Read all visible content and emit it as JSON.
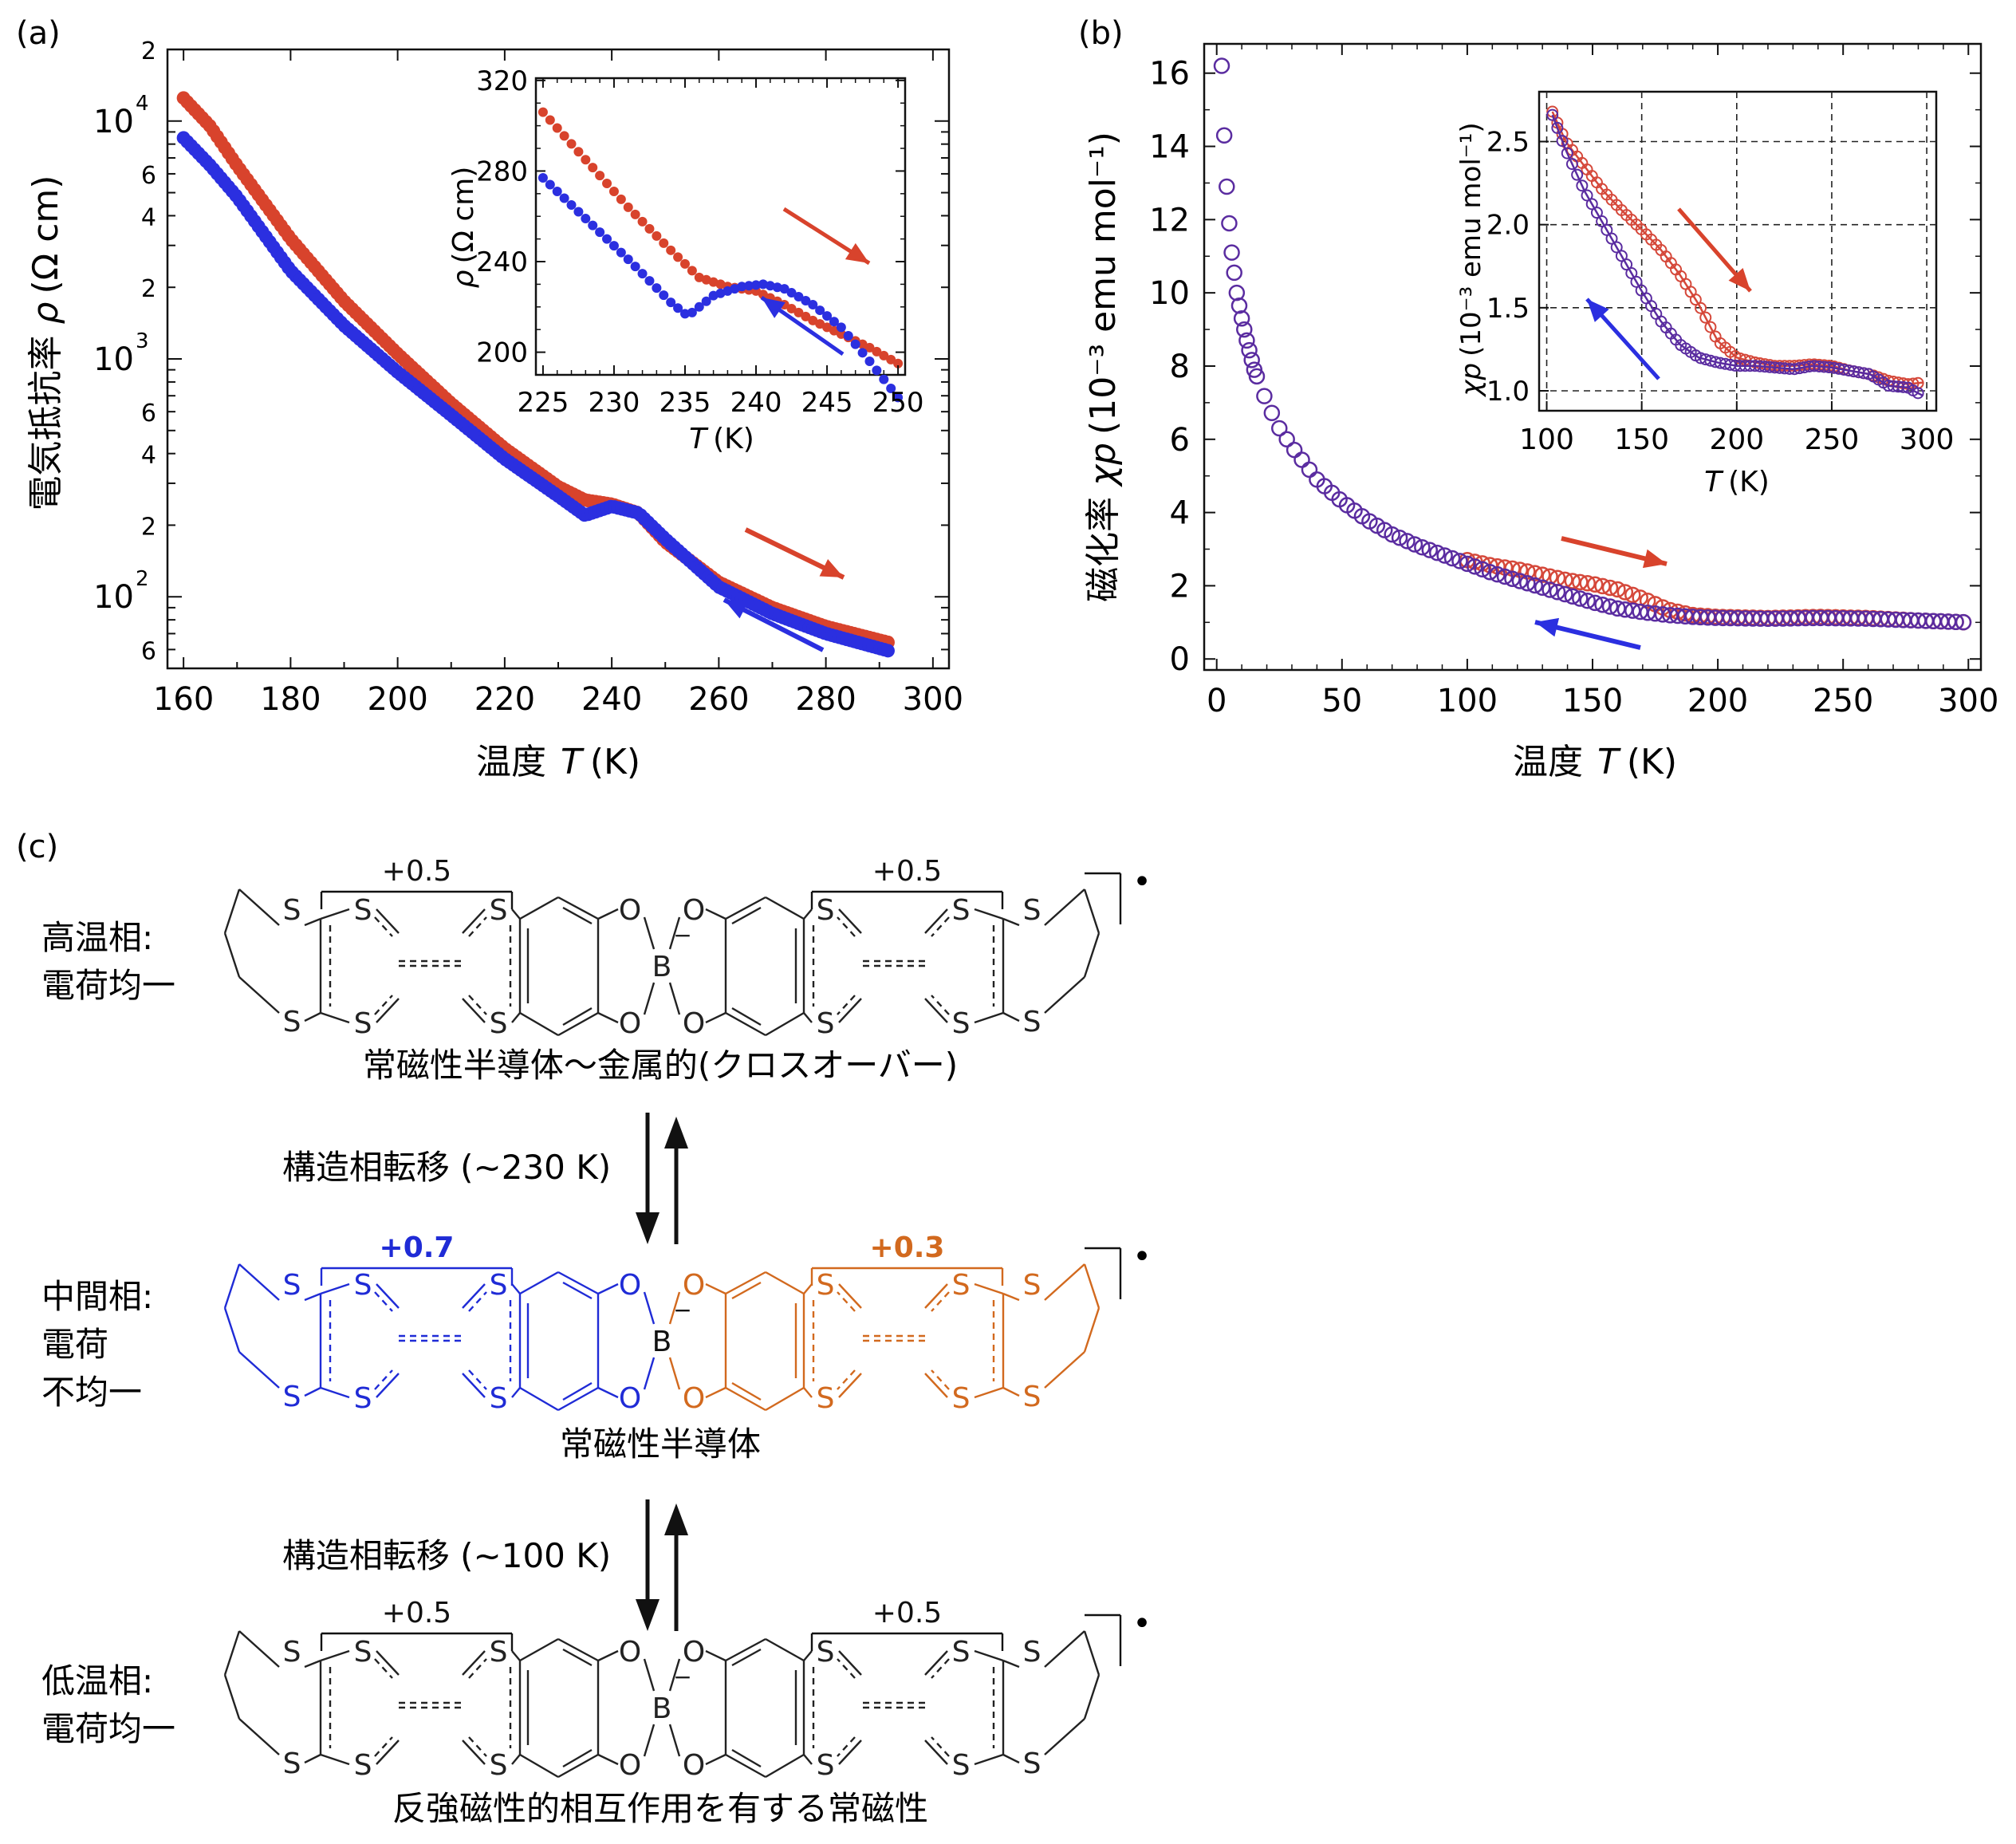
{
  "panels": {
    "a": "(a)",
    "b": "(b)",
    "c": "(c)"
  },
  "colors": {
    "red": "#d8432c",
    "blue": "#2b2fe0",
    "purple": "#5a2ca0",
    "red_open": "#d5483a",
    "orange": "#d2691e",
    "mol_blue": "#1f2bd6",
    "black": "#111111"
  },
  "chart_data": [
    {
      "id": "a-main",
      "type": "scatter",
      "xlabel_prefix": "温度",
      "xlabel_var": "T",
      "xlabel_unit": "(K)",
      "ylabel_prefix": "電気抵抗率",
      "ylabel_var": "ρ",
      "ylabel_unit": "(Ω cm)",
      "xlim": [
        157,
        303
      ],
      "ylim": [
        50,
        20000
      ],
      "yscale": "log",
      "xticks": [
        160,
        180,
        200,
        220,
        240,
        260,
        280,
        300
      ],
      "ytick_labels": [
        {
          "v": 20000,
          "t": "2"
        },
        {
          "v": 6000,
          "t": "6"
        },
        {
          "v": 4000,
          "t": "4"
        },
        {
          "v": 2000,
          "t": "2"
        },
        {
          "v": 600,
          "t": "6"
        },
        {
          "v": 400,
          "t": "4"
        },
        {
          "v": 200,
          "t": "2"
        },
        {
          "v": 60,
          "t": "6"
        }
      ],
      "ytick_decades": [
        {
          "v": 10000,
          "base": "10",
          "exp": "4"
        },
        {
          "v": 1000,
          "base": "10",
          "exp": "3"
        },
        {
          "v": 100,
          "base": "10",
          "exp": "2"
        }
      ],
      "series": [
        {
          "direction": "heating",
          "color": "red",
          "x": [
            160,
            165,
            170,
            180,
            190,
            200,
            210,
            220,
            230,
            235,
            240,
            245,
            250,
            260,
            270,
            280,
            292
          ],
          "y": [
            12500,
            9500,
            6500,
            3200,
            1750,
            1050,
            650,
            420,
            290,
            255,
            245,
            225,
            170,
            115,
            90,
            75,
            64
          ]
        },
        {
          "direction": "cooling",
          "color": "blue",
          "x": [
            160,
            165,
            170,
            180,
            190,
            200,
            210,
            220,
            230,
            235,
            240,
            245,
            250,
            260,
            270,
            280,
            292
          ],
          "y": [
            8500,
            6500,
            4800,
            2350,
            1380,
            880,
            580,
            380,
            265,
            220,
            240,
            225,
            175,
            110,
            85,
            70,
            59
          ]
        }
      ]
    },
    {
      "id": "a-inset",
      "type": "scatter",
      "xlabel_var": "T",
      "xlabel_unit": "(K)",
      "ylabel_var": "ρ",
      "ylabel_unit": "(Ω cm)",
      "xlim": [
        224.5,
        250.5
      ],
      "ylim": [
        190,
        321
      ],
      "xticks": [
        225,
        230,
        235,
        240,
        245,
        250
      ],
      "yticks": [
        200,
        240,
        280,
        320
      ],
      "series": [
        {
          "direction": "heating",
          "color": "red",
          "x": [
            225,
            228,
            231,
            234,
            236,
            238,
            240,
            242,
            244,
            246,
            248,
            250
          ],
          "y": [
            306,
            285,
            264,
            245,
            233,
            229,
            227,
            221,
            214,
            208,
            202,
            195
          ]
        },
        {
          "direction": "cooling",
          "color": "blue",
          "x": [
            225,
            228,
            231,
            234,
            235.2,
            237,
            239,
            240.5,
            242,
            244,
            246,
            248,
            250
          ],
          "y": [
            277,
            259,
            241,
            222,
            216,
            225,
            229,
            230,
            228,
            221,
            211,
            196,
            180
          ]
        }
      ]
    },
    {
      "id": "b-main",
      "type": "scatter",
      "xlabel_prefix": "温度",
      "xlabel_var": "T",
      "xlabel_unit": "(K)",
      "ylabel_prefix": "磁化率",
      "ylabel_var": "χp",
      "ylabel_unit": "(10⁻³ emu mol⁻¹)",
      "xlim": [
        -5,
        305
      ],
      "ylim": [
        -0.3,
        16.8
      ],
      "xticks": [
        0,
        50,
        100,
        150,
        200,
        250,
        300
      ],
      "yticks": [
        0,
        2,
        4,
        6,
        8,
        10,
        12,
        14,
        16
      ],
      "series": [
        {
          "direction": "heating",
          "color": "red_open",
          "x": [
            100,
            110,
            120,
            130,
            140,
            150,
            160,
            170,
            180,
            190,
            200,
            220,
            240,
            260,
            280,
            300
          ],
          "y": [
            2.7,
            2.55,
            2.45,
            2.3,
            2.15,
            2.05,
            1.9,
            1.65,
            1.35,
            1.2,
            1.15,
            1.12,
            1.15,
            1.12,
            1.05,
            1.0
          ]
        },
        {
          "direction": "cooling",
          "color": "purple",
          "x": [
            2,
            3,
            4,
            5,
            6,
            8,
            10,
            12,
            15,
            20,
            25,
            30,
            40,
            50,
            60,
            70,
            80,
            90,
            100,
            110,
            120,
            130,
            140,
            150,
            160,
            170,
            180,
            190,
            200,
            220,
            240,
            260,
            280,
            300
          ],
          "y": [
            16.2,
            14.3,
            12.9,
            11.9,
            11.1,
            10.0,
            9.3,
            8.7,
            7.9,
            7.0,
            6.3,
            5.8,
            4.9,
            4.3,
            3.8,
            3.4,
            3.1,
            2.85,
            2.6,
            2.35,
            2.15,
            1.95,
            1.75,
            1.55,
            1.38,
            1.28,
            1.2,
            1.15,
            1.12,
            1.1,
            1.12,
            1.1,
            1.05,
            1.0
          ]
        }
      ]
    },
    {
      "id": "b-inset",
      "type": "scatter",
      "xlabel_var": "T",
      "xlabel_unit": "(K)",
      "ylabel_var": "χp",
      "ylabel_unit": "(10⁻³ emu mol⁻¹)",
      "xlim": [
        96,
        305
      ],
      "ylim": [
        0.88,
        2.8
      ],
      "xticks": [
        100,
        150,
        200,
        250,
        300
      ],
      "yticks": [
        1.0,
        1.5,
        2.0,
        2.5
      ],
      "ytick_labels": [
        "1.0",
        "1.5",
        "2.0",
        "2.5"
      ],
      "grid": "dashed",
      "series": [
        {
          "direction": "heating",
          "color": "red_open",
          "x": [
            103,
            110,
            120,
            130,
            140,
            150,
            160,
            170,
            180,
            190,
            200,
            210,
            220,
            230,
            240,
            250,
            260,
            270,
            280,
            290,
            298
          ],
          "y": [
            2.68,
            2.5,
            2.35,
            2.2,
            2.08,
            1.97,
            1.85,
            1.7,
            1.52,
            1.3,
            1.2,
            1.17,
            1.15,
            1.15,
            1.16,
            1.15,
            1.12,
            1.1,
            1.06,
            1.04,
            1.05
          ]
        },
        {
          "direction": "cooling",
          "color": "purple",
          "x": [
            103,
            110,
            120,
            130,
            140,
            150,
            160,
            170,
            180,
            190,
            200,
            210,
            220,
            230,
            240,
            250,
            260,
            270,
            280,
            290,
            298
          ],
          "y": [
            2.66,
            2.45,
            2.2,
            2.0,
            1.8,
            1.6,
            1.42,
            1.28,
            1.2,
            1.17,
            1.15,
            1.15,
            1.14,
            1.13,
            1.15,
            1.14,
            1.12,
            1.1,
            1.03,
            1.02,
            0.97
          ]
        }
      ]
    }
  ],
  "scheme": {
    "phases": [
      {
        "label_lines": [
          "高温相:",
          "電荷均一"
        ],
        "charges": [
          "+0.5",
          "+0.5"
        ],
        "caption": "常磁性半導体〜金属的(クロスオーバー)",
        "radical": "•"
      },
      {
        "label_lines": [
          "中間相:",
          "電荷",
          "不均一"
        ],
        "charges": [
          "+0.7",
          "+0.3"
        ],
        "caption": "常磁性半導体",
        "radical": "•"
      },
      {
        "label_lines": [
          "低温相:",
          "電荷均一"
        ],
        "charges": [
          "+0.5",
          "+0.5"
        ],
        "caption": "反強磁性的相互作用を有する常磁性",
        "radical": "•"
      }
    ],
    "transitions": [
      {
        "label": "構造相転移 (~230 K)"
      },
      {
        "label": "構造相転移 (~100 K)"
      }
    ],
    "atoms": {
      "S": "S",
      "O": "O",
      "B": "B",
      "minus": "−"
    }
  }
}
